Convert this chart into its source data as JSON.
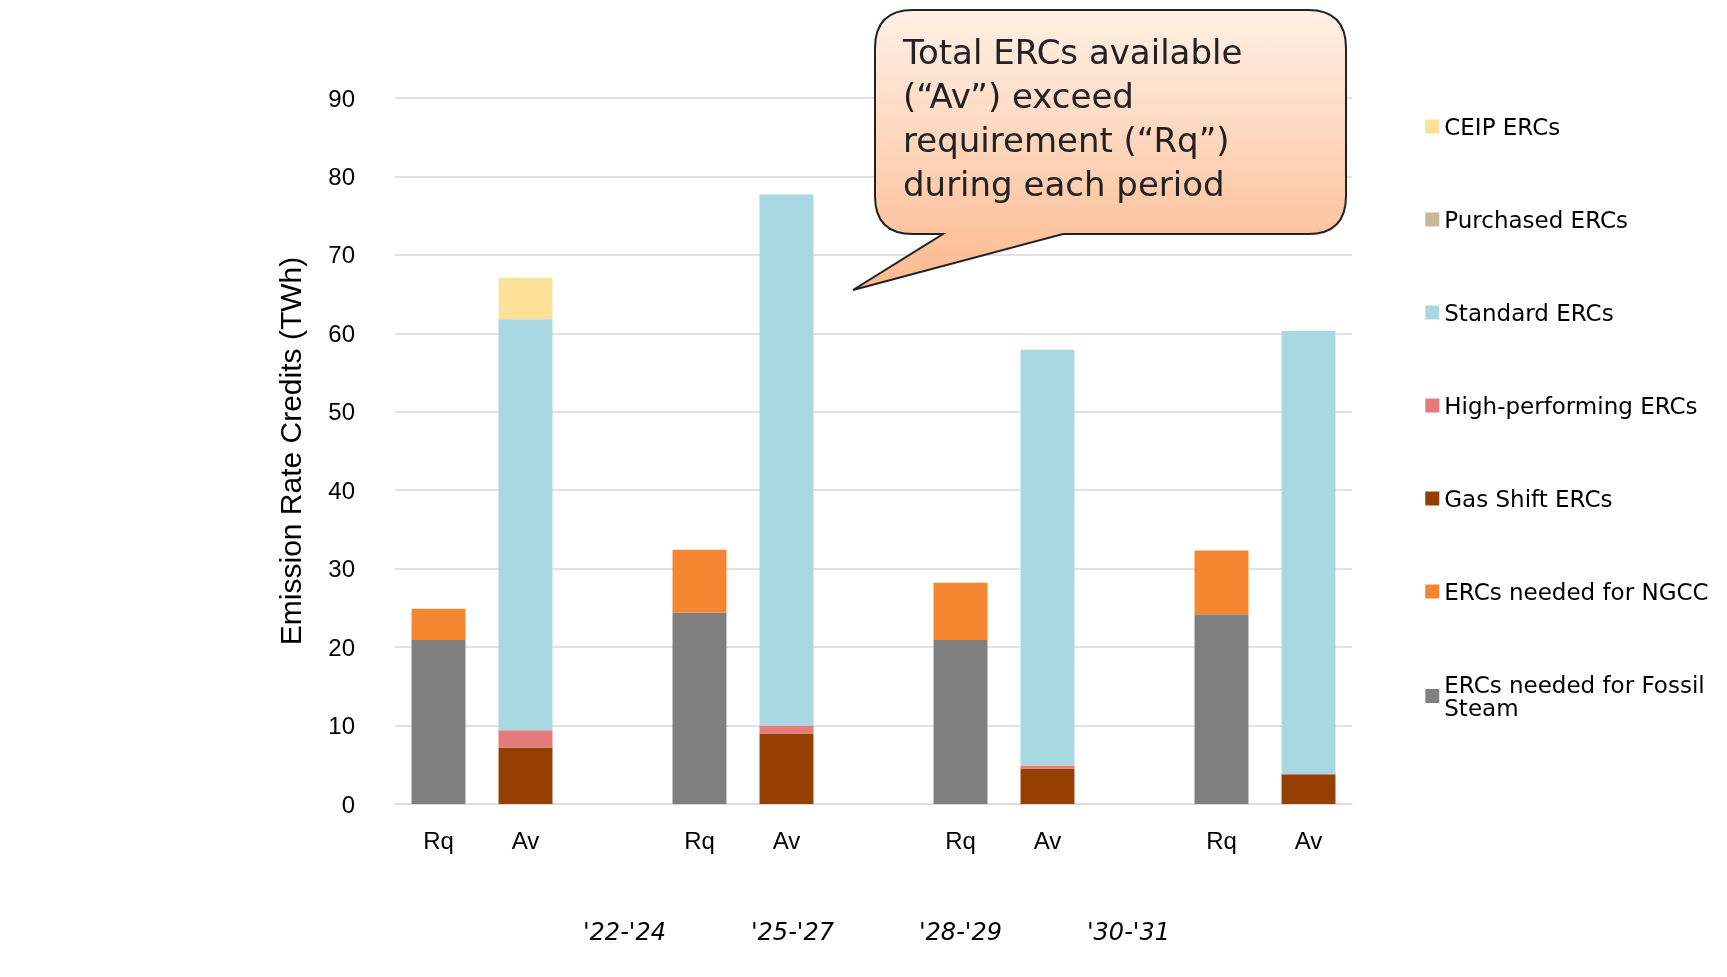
{
  "chart_data": {
    "type": "bar",
    "stacked": true,
    "ylabel": "Emission Rate Credits (TWh)",
    "categories": [
      "Rq",
      "Av",
      null,
      "Rq",
      "Av",
      null,
      "Rq",
      "Av",
      null,
      "Rq",
      "Av"
    ],
    "series": [
      {
        "name": "ERCs needed for Fossil Steam",
        "color": "#7f7f7f",
        "values": [
          20.9,
          null,
          null,
          24.4,
          null,
          null,
          20.9,
          null,
          null,
          24.2,
          null
        ]
      },
      {
        "name": "ERCs needed for NGCC",
        "color": "#f58631",
        "values": [
          4.0,
          null,
          null,
          8.0,
          null,
          null,
          7.3,
          null,
          null,
          8.1,
          null
        ]
      },
      {
        "name": "Gas Shift ERCs",
        "color": "#963f05",
        "values": [
          null,
          7.2,
          null,
          null,
          9.0,
          null,
          null,
          4.5,
          null,
          null,
          3.8
        ]
      },
      {
        "name": "High-performing ERCs",
        "color": "#e57a7a",
        "values": [
          null,
          2.2,
          null,
          null,
          1.0,
          null,
          null,
          0.4,
          null,
          null,
          null
        ]
      },
      {
        "name": "Standard ERCs",
        "color": "#a9d8e2",
        "values": [
          null,
          52.4,
          null,
          null,
          67.7,
          null,
          null,
          53.0,
          null,
          null,
          56.5
        ]
      },
      {
        "name": "Purchased ERCs",
        "color": "#c8b89a",
        "values": [
          null,
          null,
          null,
          null,
          null,
          null,
          null,
          null,
          null,
          null,
          null
        ]
      },
      {
        "name": "CEIP ERCs",
        "color": "#ffe099",
        "values": [
          null,
          5.3,
          null,
          null,
          null,
          null,
          null,
          null,
          null,
          null,
          null
        ]
      }
    ],
    "ylim": [
      0,
      90
    ],
    "yticks": [
      0,
      10,
      20,
      30,
      40,
      50,
      60,
      70,
      80,
      90
    ],
    "grid": "y",
    "legend": "right",
    "annotations": [
      "'22-'24",
      "'25-'27",
      "'28-'29",
      "'30-'31",
      "Total ERCs available (“Av”) exceed requirement (“Rq”) during each period"
    ]
  }
}
